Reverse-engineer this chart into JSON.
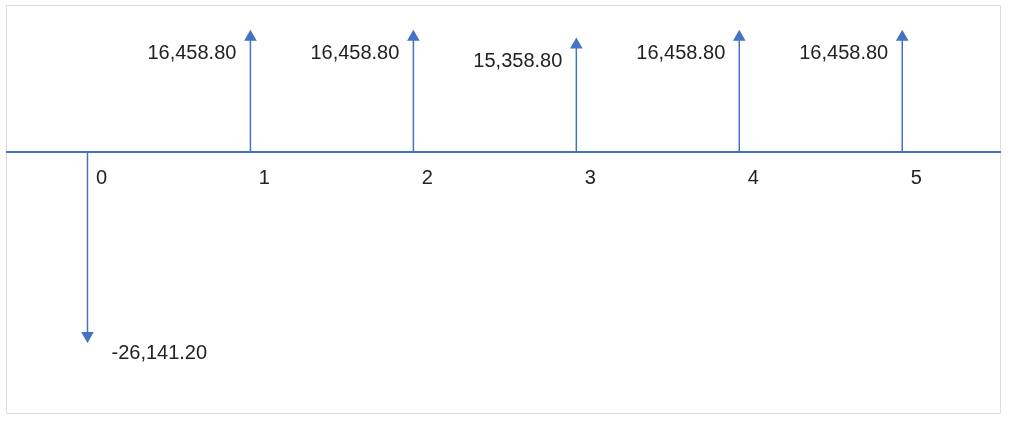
{
  "chart_data": {
    "type": "lollipop",
    "categories": [
      "0",
      "1",
      "2",
      "3",
      "4",
      "5"
    ],
    "values": [
      -26141.2,
      16458.8,
      16458.8,
      15358.8,
      16458.8,
      16458.8
    ],
    "value_labels": [
      "-26,141.20",
      "16,458.80",
      "16,458.80",
      "15,358.80",
      "16,458.80",
      "16,458.80"
    ],
    "color": "#4472c4",
    "marker": "triangle"
  }
}
